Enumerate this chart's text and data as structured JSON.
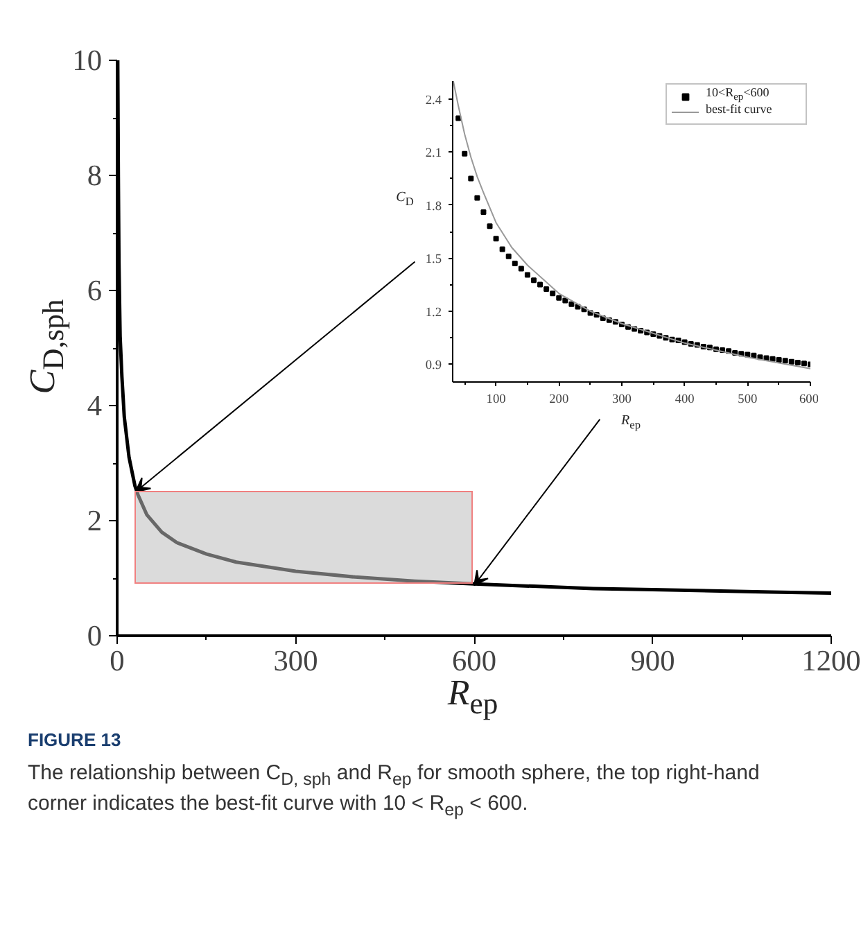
{
  "chart_data": [
    {
      "type": "line",
      "xlabel": "R$_{ep}$",
      "ylabel": "C$_{D,sph}$",
      "xlim": [
        0,
        1200
      ],
      "ylim": [
        0,
        10
      ],
      "xticks": [
        0,
        300,
        600,
        900,
        1200
      ],
      "yticks": [
        0,
        2,
        4,
        6,
        8,
        10
      ],
      "grid": false,
      "x": [
        1,
        2,
        3,
        5,
        8,
        12,
        20,
        30,
        35,
        50,
        75,
        100,
        150,
        200,
        300,
        400,
        500,
        600,
        700,
        800,
        900,
        1000,
        1100,
        1200
      ],
      "series": [
        {
          "color": "#000000",
          "values": [
            10,
            8,
            6.5,
            5.2,
            4.5,
            3.8,
            3.1,
            2.6,
            2.45,
            2.1,
            1.8,
            1.62,
            1.42,
            1.28,
            1.12,
            1.02,
            0.95,
            0.9,
            0.86,
            0.82,
            0.8,
            0.78,
            0.76,
            0.74
          ]
        }
      ],
      "annotations": [
        "FIGURE 13",
        "The relationship between C$_{D, sph}$ and R$_{ep}$ for smooth sphere, the top right-hand corner indicates the best-fit curve with 10 < R$_{ep}$ < 600."
      ]
    },
    {
      "type": "scatter",
      "xlabel": "R$_{ep}$",
      "ylabel": "C$_{D}$",
      "xlim": [
        31,
        600
      ],
      "ylim": [
        0.8,
        2.5
      ],
      "xticks": [
        100,
        200,
        300,
        400,
        500,
        600
      ],
      "yticks": [
        0.9,
        1.2,
        1.5,
        1.8,
        2.1,
        2.4
      ],
      "grid": false,
      "legend": "top right",
      "series": [
        {
          "name": "10<R$_{ep}$<600",
          "type": "scatter",
          "marker": "square",
          "color": "#000000",
          "x": [
            40,
            50,
            60,
            70,
            80,
            90,
            100,
            110,
            120,
            130,
            140,
            150,
            160,
            170,
            180,
            190,
            200,
            210,
            220,
            230,
            240,
            250,
            260,
            270,
            280,
            290,
            300,
            310,
            320,
            330,
            340,
            350,
            360,
            370,
            380,
            390,
            400,
            410,
            420,
            430,
            440,
            450,
            460,
            470,
            480,
            490,
            500,
            510,
            520,
            530,
            540,
            550,
            560,
            570,
            580,
            590,
            600
          ],
          "values": [
            2.29,
            2.09,
            1.95,
            1.84,
            1.76,
            1.68,
            1.61,
            1.55,
            1.51,
            1.47,
            1.44,
            1.405,
            1.375,
            1.35,
            1.325,
            1.3,
            1.275,
            1.26,
            1.24,
            1.225,
            1.21,
            1.19,
            1.18,
            1.16,
            1.15,
            1.14,
            1.125,
            1.11,
            1.1,
            1.09,
            1.08,
            1.07,
            1.06,
            1.05,
            1.04,
            1.035,
            1.025,
            1.015,
            1.01,
            1.0,
            0.995,
            0.985,
            0.98,
            0.975,
            0.965,
            0.96,
            0.955,
            0.95,
            0.94,
            0.935,
            0.93,
            0.925,
            0.92,
            0.915,
            0.91,
            0.905,
            0.9
          ]
        },
        {
          "name": "best-fit curve",
          "type": "line",
          "color": "#999999",
          "x": [
            32,
            40,
            50,
            60,
            70,
            80,
            100,
            125,
            150,
            200,
            250,
            300,
            400,
            500,
            600
          ],
          "values": [
            2.5,
            2.36,
            2.2,
            2.07,
            1.96,
            1.87,
            1.7,
            1.56,
            1.46,
            1.3,
            1.2,
            1.13,
            1.02,
            0.94,
            0.875
          ]
        }
      ]
    }
  ]
}
